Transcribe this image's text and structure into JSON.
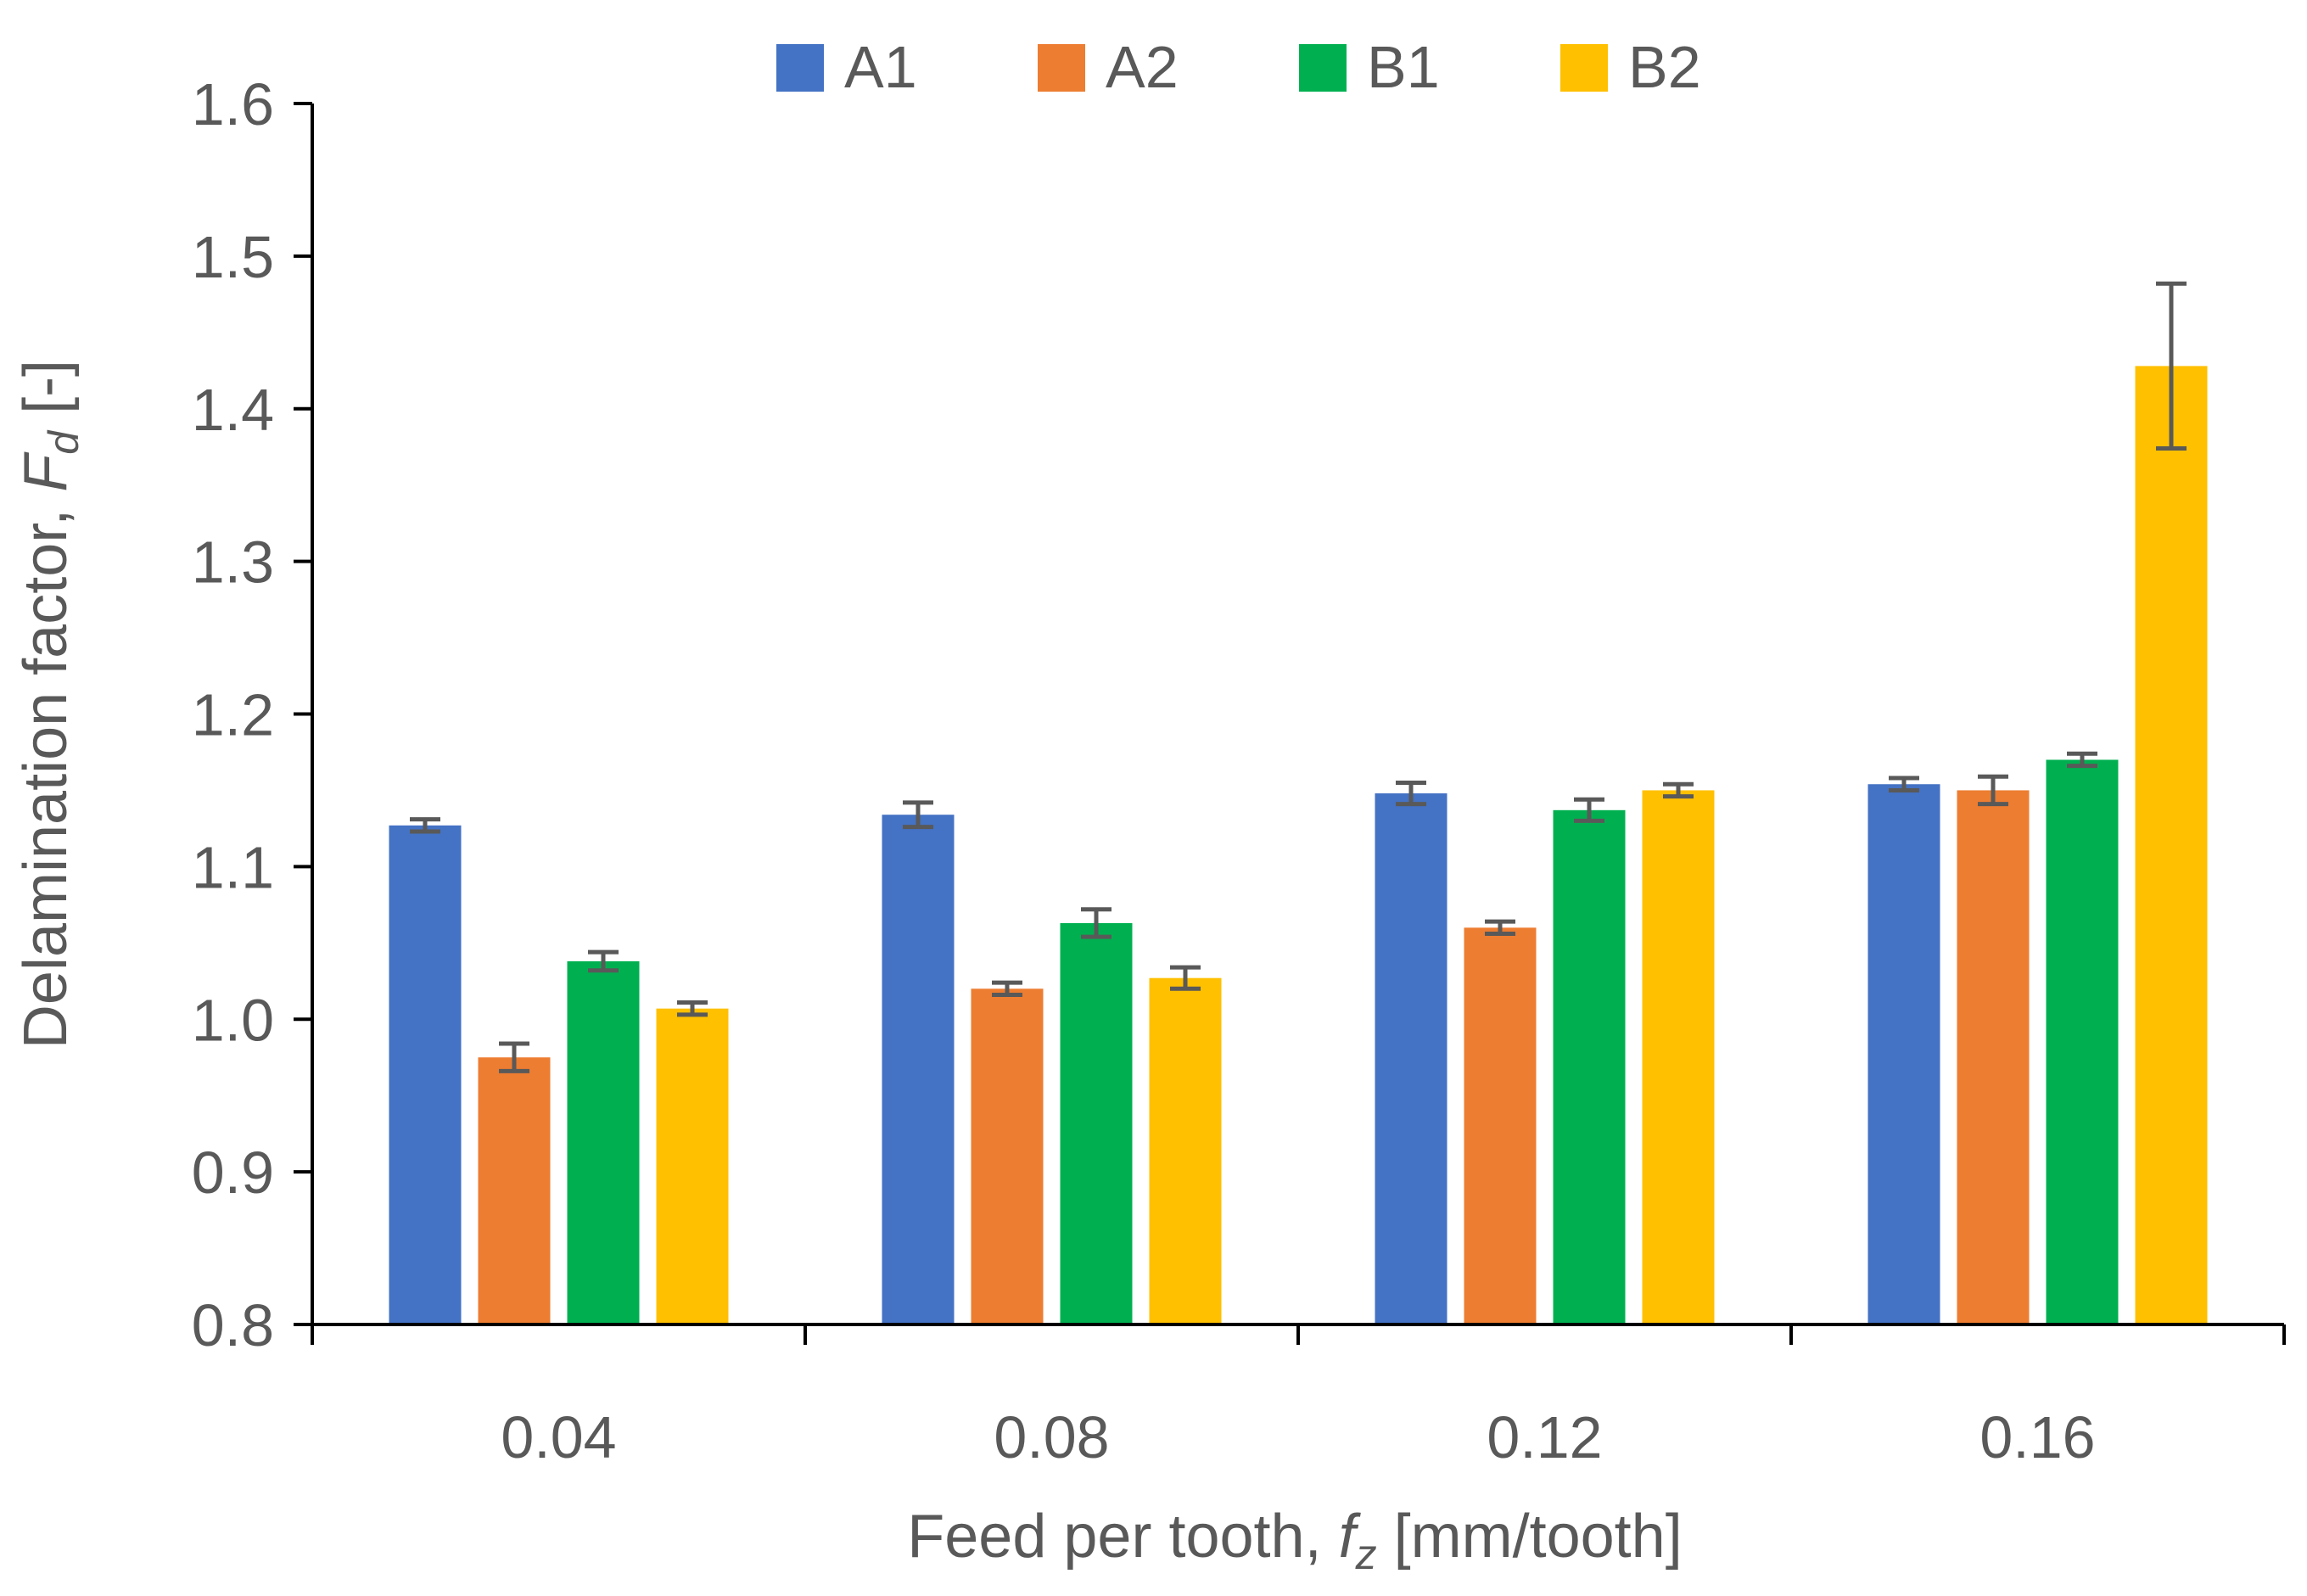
{
  "chart_data": {
    "type": "bar",
    "title": "",
    "categories": [
      "0.04",
      "0.08",
      "0.12",
      "0.16"
    ],
    "series": [
      {
        "name": "A1",
        "color": "#4472C4",
        "values": [
          1.127,
          1.134,
          1.148,
          1.154
        ],
        "errors": [
          0.004,
          0.008,
          0.007,
          0.004
        ]
      },
      {
        "name": "A2",
        "color": "#ED7D31",
        "values": [
          0.975,
          1.02,
          1.06,
          1.15
        ],
        "errors": [
          0.009,
          0.004,
          0.004,
          0.009
        ]
      },
      {
        "name": "B1",
        "color": "#00B050",
        "values": [
          1.038,
          1.063,
          1.137,
          1.17
        ],
        "errors": [
          0.006,
          0.009,
          0.007,
          0.004
        ]
      },
      {
        "name": "B2",
        "color": "#FFC000",
        "values": [
          1.007,
          1.027,
          1.15,
          1.428
        ],
        "errors": [
          0.004,
          0.007,
          0.004,
          0.054
        ]
      }
    ],
    "ylabel_main": "Delamination factor, ",
    "ylabel_symbol": "F",
    "ylabel_subscript": "d",
    "ylabel_unit": " [-]",
    "xlabel_main": "Feed per tooth, ",
    "xlabel_symbol": "f",
    "xlabel_subscript": "z",
    "xlabel_unit": " [mm/tooth]",
    "ylim": [
      0.8,
      1.6
    ],
    "yticks": [
      "0.8",
      "0.9",
      "1.0",
      "1.1",
      "1.2",
      "1.3",
      "1.4",
      "1.5",
      "1.6"
    ],
    "legend_position": "top-center",
    "grid": false,
    "error_bar_color": "#595959",
    "axis_color": "#000000"
  }
}
